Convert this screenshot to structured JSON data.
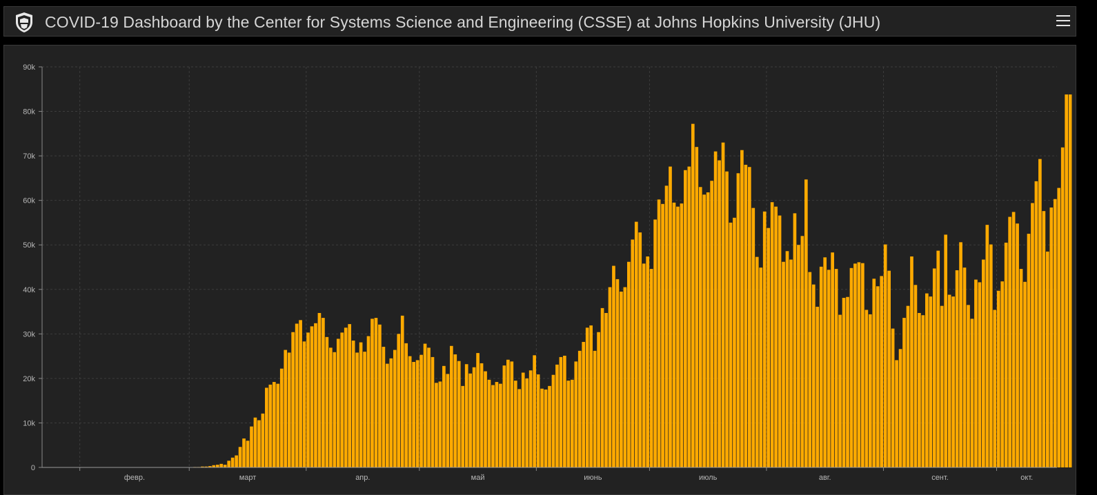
{
  "header": {
    "title": "COVID-19 Dashboard by the Center for Systems Science and Engineering (CSSE) at Johns Hopkins University (JHU)",
    "logo_icon": "university-seal-icon",
    "menu_icon": "hamburger-menu-icon"
  },
  "colors": {
    "bar": "#FFAA00",
    "background": "#222222",
    "grid": "#3d3d3d",
    "text": "#b8b8b8"
  },
  "chart_data": {
    "type": "bar",
    "title": "",
    "xlabel": "",
    "ylabel": "",
    "ylim": [
      0,
      90000
    ],
    "yticks": [
      {
        "value": 0,
        "label": "0"
      },
      {
        "value": 10000,
        "label": "10k"
      },
      {
        "value": 20000,
        "label": "20k"
      },
      {
        "value": 30000,
        "label": "30k"
      },
      {
        "value": 40000,
        "label": "40k"
      },
      {
        "value": 50000,
        "label": "50k"
      },
      {
        "value": 60000,
        "label": "60k"
      },
      {
        "value": 70000,
        "label": "70k"
      },
      {
        "value": 80000,
        "label": "80k"
      },
      {
        "value": 90000,
        "label": "90k"
      }
    ],
    "xticks": [
      {
        "date": "2020-02-01",
        "label": "февр."
      },
      {
        "date": "2020-03-01",
        "label": "март"
      },
      {
        "date": "2020-04-01",
        "label": "апр."
      },
      {
        "date": "2020-05-01",
        "label": "май"
      },
      {
        "date": "2020-06-01",
        "label": "июнь"
      },
      {
        "date": "2020-07-01",
        "label": "июль"
      },
      {
        "date": "2020-08-01",
        "label": "авг."
      },
      {
        "date": "2020-09-01",
        "label": "сент."
      },
      {
        "date": "2020-10-01",
        "label": "окт."
      }
    ],
    "x_start": "2020-01-22",
    "x_end": "2020-10-16",
    "grid": true,
    "legend": "none",
    "series": [
      {
        "values": [
          0,
          0,
          0,
          0,
          0,
          0,
          0,
          0,
          0,
          0,
          0,
          0,
          0,
          0,
          0,
          0,
          0,
          0,
          0,
          0,
          0,
          0,
          0,
          0,
          0,
          0,
          0,
          0,
          0,
          0,
          0,
          0,
          0,
          0,
          0,
          0,
          0,
          0,
          0,
          0,
          100,
          100,
          200,
          200,
          300,
          500,
          600,
          800,
          600,
          1500,
          2200,
          2700,
          4600,
          6500,
          6000,
          9200,
          11200,
          10600,
          12100,
          17900,
          18600,
          19200,
          18800,
          22200,
          26400,
          25800,
          30400,
          32300,
          33100,
          28300,
          30300,
          31700,
          32400,
          34700,
          33600,
          29300,
          26900,
          25900,
          28900,
          30300,
          31400,
          32200,
          28500,
          25800,
          28100,
          26000,
          29500,
          33400,
          33600,
          32100,
          27100,
          23300,
          24500,
          26400,
          30000,
          34100,
          27900,
          25000,
          23700,
          24100,
          25300,
          27800,
          26900,
          24800,
          19000,
          19300,
          22800,
          21000,
          27300,
          25400,
          23900,
          18300,
          23200,
          21100,
          22500,
          25700,
          23400,
          21600,
          19700,
          18500,
          19200,
          18800,
          22900,
          24200,
          23800,
          19500,
          17600,
          21300,
          20000,
          21800,
          25200,
          20900,
          17700,
          17500,
          18300,
          20800,
          23100,
          24800,
          25100,
          19500,
          19700,
          23800,
          26200,
          28200,
          31400,
          31900,
          26200,
          30400,
          35800,
          34700,
          40500,
          45300,
          42300,
          39500,
          40500,
          46200,
          51200,
          55200,
          52800,
          45800,
          47400,
          44600,
          55700,
          60200,
          59200,
          63300,
          67600,
          59500,
          58600,
          59300,
          66800,
          67600,
          77200,
          72000,
          63000,
          61300,
          61800,
          64400,
          71000,
          69000,
          73000,
          66500,
          55000,
          56100,
          66100,
          71300,
          68000,
          67500,
          58300,
          47300,
          44900,
          57500,
          53800,
          59600,
          58600,
          56600,
          46200,
          48600,
          46700,
          57100,
          50000,
          52000,
          64700,
          43900,
          41100,
          36100,
          45100,
          47200,
          44400,
          48300,
          44600,
          34300,
          38100,
          38300,
          44800,
          45800,
          46100,
          45900,
          35400,
          34400,
          42400,
          40700,
          43000,
          50100,
          44200,
          31200,
          24100,
          26600,
          33600,
          36300,
          47400,
          41000,
          34700,
          34200,
          39100,
          38400,
          44700,
          48700,
          36300,
          52300,
          38800,
          38400,
          44300,
          50600,
          44900,
          36500,
          33400,
          42200,
          41600,
          46700,
          54500,
          50100,
          35400,
          39700,
          41800,
          50500,
          56300,
          57400,
          54800,
          44600,
          41700,
          52500,
          59400,
          64300,
          69300,
          57600,
          48500,
          58400,
          60300,
          62800,
          71900,
          83800,
          83800
        ]
      }
    ]
  }
}
